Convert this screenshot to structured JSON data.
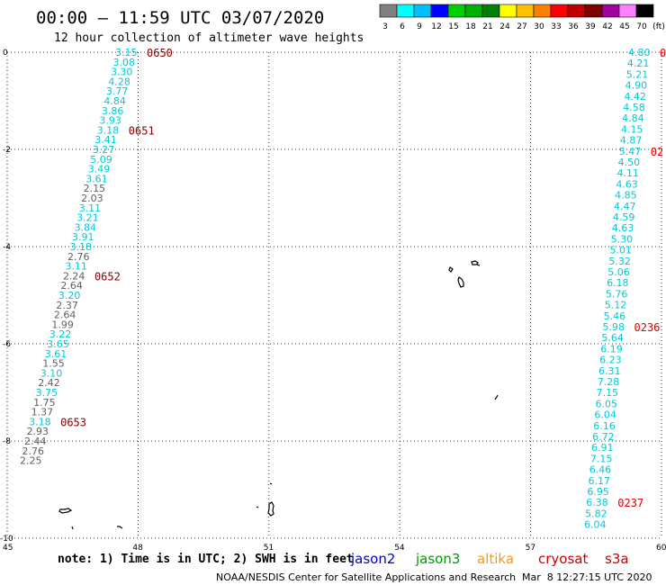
{
  "title": "00:00 – 11:59 UTC 03/07/2020",
  "subtitle": "12 hour collection of altimeter wave heights",
  "legend": {
    "colors": [
      "#808080",
      "#00ffff",
      "#00bfff",
      "#0000ff",
      "#00d000",
      "#00b000",
      "#008000",
      "#ffff00",
      "#ffc000",
      "#ff8000",
      "#ff0000",
      "#c00000",
      "#800000",
      "#a000a0",
      "#ff80ff",
      "#000000"
    ],
    "labels": [
      "3",
      "6",
      "9",
      "12",
      "15",
      "18",
      "21",
      "24",
      "27",
      "30",
      "33",
      "36",
      "39",
      "42",
      "45",
      "70",
      "(ft)"
    ]
  },
  "axes": {
    "lat_ticks": [
      "0",
      "-2",
      "-4",
      "-6",
      "-8",
      "-10"
    ],
    "lon_ticks": [
      "45",
      "48",
      "51",
      "54",
      "57",
      "60"
    ]
  },
  "left_track": {
    "values": [
      "3.15",
      "3.08",
      "3.30",
      "4.28",
      "3.77",
      "4.84",
      "3.86",
      "3.93",
      "3.18",
      "3.41",
      "3.27",
      "5.09",
      "3.49",
      "3.61",
      "2.15",
      "2.03",
      "3.11",
      "3.21",
      "3.84",
      "3.91",
      "3.18",
      "2.76",
      "3.11",
      "2.24",
      "2.64",
      "3.20",
      "2.37",
      "2.64",
      "1.99",
      "3.22",
      "3.65",
      "3.61",
      "1.55",
      "3.10",
      "2.42",
      "3.75",
      "1.75",
      "1.37",
      "3.18",
      "2.93",
      "2.44",
      "2.76",
      "2.25"
    ],
    "colors": [
      "c",
      "c",
      "c",
      "c",
      "c",
      "c",
      "c",
      "c",
      "c",
      "c",
      "c",
      "c",
      "c",
      "c",
      "g",
      "g",
      "c",
      "c",
      "c",
      "c",
      "c",
      "g",
      "c",
      "g",
      "g",
      "c",
      "g",
      "g",
      "g",
      "c",
      "c",
      "c",
      "g",
      "c",
      "g",
      "c",
      "g",
      "g",
      "c",
      "g",
      "g",
      "g",
      "g"
    ],
    "times": [
      {
        "label": "0650",
        "index": 0
      },
      {
        "label": "0651",
        "index": 8
      },
      {
        "label": "0652",
        "index": 23
      },
      {
        "label": "0653",
        "index": 38
      }
    ]
  },
  "right_track": {
    "values": [
      "4.80",
      "4.21",
      "5.21",
      "4.90",
      "4.42",
      "4.58",
      "4.84",
      "4.15",
      "4.87",
      "5.47",
      "4.50",
      "4.11",
      "4.63",
      "4.85",
      "4.47",
      "4.59",
      "4.63",
      "5.30",
      "5.01",
      "5.32",
      "5.06",
      "6.18",
      "5.76",
      "5.12",
      "5.46",
      "5.98",
      "5.64",
      "6.19",
      "6.23",
      "6.31",
      "7.28",
      "7.15",
      "6.05",
      "6.04",
      "6.16",
      "6.72",
      "6.91",
      "7.15",
      "6.46",
      "6.17",
      "6.95",
      "6.38",
      "5.82",
      "6.04"
    ],
    "times": [
      {
        "label": "0",
        "index": 0
      },
      {
        "label": "02",
        "index": 9
      },
      {
        "label": "0236",
        "index": 25
      },
      {
        "label": "0237",
        "index": 41
      }
    ]
  },
  "note": "note: 1) Time is in UTC; 2) SWH is in feet",
  "satellites": [
    {
      "name": "jason2",
      "color": "#0000cc"
    },
    {
      "name": "jason3",
      "color": "#009900"
    },
    {
      "name": "altika",
      "color": "#ff9900"
    },
    {
      "name": "cryosat",
      "color": "#cc0000"
    },
    {
      "name": "s3a",
      "color": "#cc0000"
    }
  ],
  "credit": "NOAA/NESDIS Center for Satellite Applications and Research",
  "timestamp": "Mar  8 12:27:15 UTC 2020"
}
